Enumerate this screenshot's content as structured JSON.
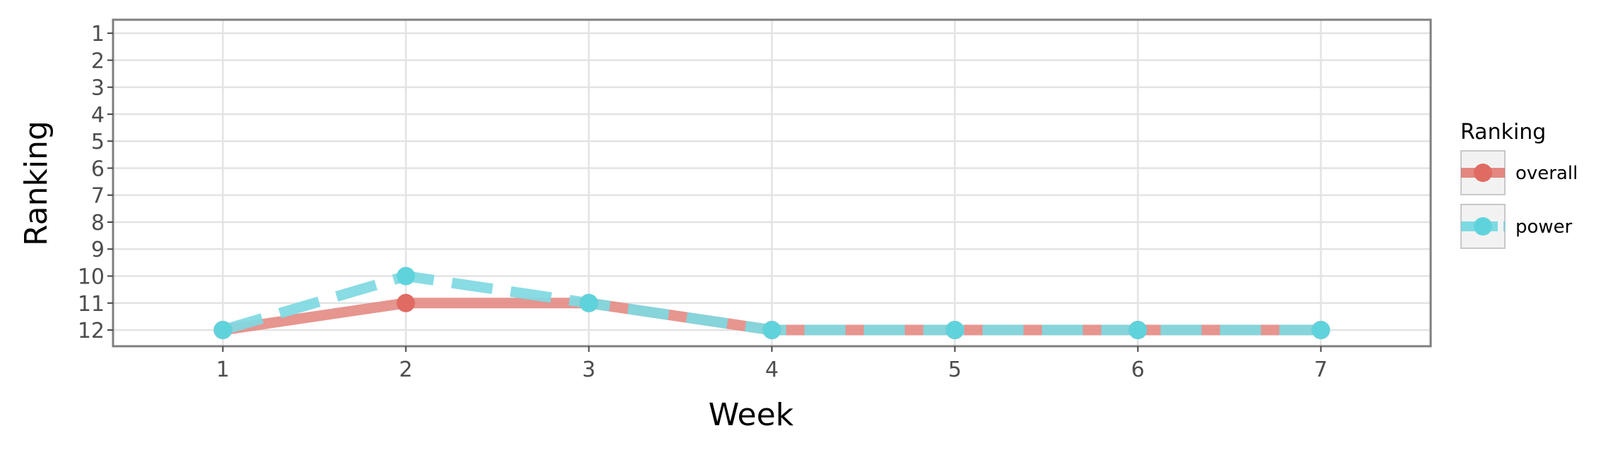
{
  "chart_data": {
    "type": "line",
    "xlabel": "Week",
    "ylabel": "Ranking",
    "x": [
      1,
      2,
      3,
      4,
      5,
      6,
      7
    ],
    "xlim": [
      0.4,
      7.6
    ],
    "ylim": [
      12.6,
      0.5
    ],
    "y_reversed": true,
    "x_ticks": [
      "1",
      "2",
      "3",
      "4",
      "5",
      "6",
      "7"
    ],
    "y_ticks": [
      "1",
      "2",
      "3",
      "4",
      "5",
      "6",
      "7",
      "8",
      "9",
      "10",
      "11",
      "12"
    ],
    "grid": true,
    "legend": {
      "title": "Ranking",
      "placement": "right",
      "entries": [
        {
          "name": "overall",
          "color": "#e06b63",
          "line_style": "solid"
        },
        {
          "name": "power",
          "color": "#5fd3dc",
          "line_style": "dashed"
        }
      ]
    },
    "series": [
      {
        "name": "overall",
        "color": "#e06b63",
        "line_color": "#e48c86",
        "line_style": "solid",
        "values": [
          12,
          11,
          11,
          12,
          12,
          12,
          12
        ]
      },
      {
        "name": "power",
        "color": "#5fd3dc",
        "line_color": "#7fd9e2",
        "line_style": "dashed",
        "values": [
          12,
          10,
          11,
          12,
          12,
          12,
          12
        ]
      }
    ]
  }
}
